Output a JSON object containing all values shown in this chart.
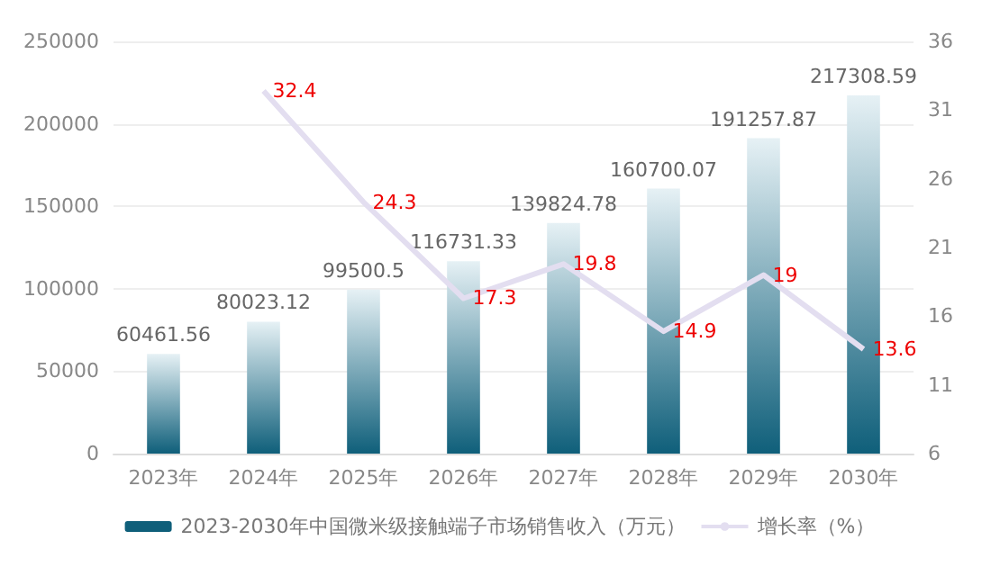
{
  "chart_data": {
    "type": "bar",
    "categories": [
      "2023年",
      "2024年",
      "2025年",
      "2026年",
      "2027年",
      "2028年",
      "2029年",
      "2030年"
    ],
    "series": [
      {
        "name": "2023-2030年中国微米级接触端子市场销售收入（万元）",
        "color": "#0f5f7a",
        "values": [
          60461.56,
          80023.12,
          99500.5,
          116731.33,
          139824.78,
          160700.07,
          191257.87,
          217308.59
        ]
      },
      {
        "name": "增长率（%）",
        "type": "line",
        "axis": "y2",
        "color": "#e3def0",
        "values": [
          null,
          32.4,
          24.3,
          17.3,
          19.8,
          14.9,
          19,
          13.6
        ]
      }
    ],
    "ylim": [
      0,
      250000
    ],
    "yticks": [
      0,
      50000,
      100000,
      150000,
      200000,
      250000
    ],
    "y2lim": [
      6,
      36
    ],
    "y2ticks": [
      6,
      11,
      16,
      21,
      26,
      31,
      36
    ],
    "data_labels": true,
    "grid": "y",
    "legend": "bottom",
    "marker": "none"
  }
}
